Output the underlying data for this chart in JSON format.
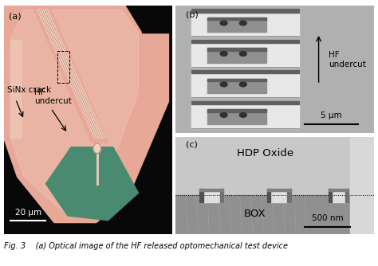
{
  "figure_caption": "Fig. 3    (a) Optical image of the HF released optomechanical test device",
  "bg_color": "#ffffff",
  "label_fontsize": 8,
  "annotation_fontsize": 7,
  "caption_fontsize": 7,
  "panel_a": {
    "label": "(a)",
    "bg_black": "#080808",
    "chip_main_color": "#e8a898",
    "chip_light_color": "#f0d0c0",
    "chip_edge_color": "#c89080",
    "green_color": "#4a8a70",
    "waveguide_color": "#c08878",
    "scalebar_color": "#ffffff",
    "scalebar_text": "20 μm",
    "annotation_color": "#000000"
  },
  "panel_b": {
    "label": "(b)",
    "bg_color": "#b0b0b0",
    "pillar_top_color": "#e8e8e8",
    "pillar_mid_color": "#d0d0d0",
    "pillar_dark_color": "#606060",
    "pillar_shadow_color": "#909090",
    "arrow_color": "#000000",
    "scalebar_text": "5 μm"
  },
  "panel_c": {
    "label": "(c)",
    "bg_top_color": "#c8c8c8",
    "bg_bot_color": "#989898",
    "notch_top_color": "#e0e0e0",
    "notch_dark_color": "#585858",
    "dashed_line_color": "#000000",
    "scalebar_text": "500 nm",
    "text_hdp": "HDP Oxide",
    "text_box": "BOX"
  }
}
